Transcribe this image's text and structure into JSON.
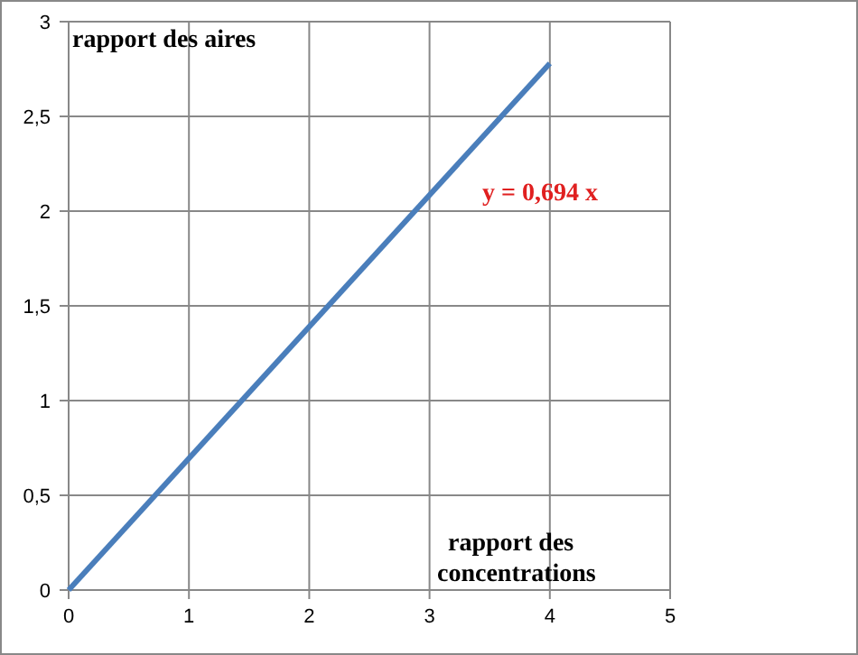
{
  "chart_data": {
    "type": "line",
    "xlabel": "rapport des concentrations",
    "ylabel": "rapport des aires",
    "x": [
      0,
      4
    ],
    "series": [
      {
        "color": "#4a7ebb",
        "values": [
          0,
          2.78
        ]
      }
    ],
    "xlim": [
      0,
      5
    ],
    "xticks": [
      0,
      1,
      2,
      3,
      4,
      5
    ],
    "ylim": [
      0,
      3
    ],
    "yticks": [
      0,
      {
        "value": 0.5,
        "label": "0,5"
      },
      1,
      {
        "value": 1.5,
        "label": "1,5"
      },
      2,
      {
        "value": 2.5,
        "label": "2,5"
      },
      3
    ],
    "grid": true,
    "marker": "none",
    "line_style": "solid",
    "annotations": [
      "y = 0,694 x"
    ]
  }
}
